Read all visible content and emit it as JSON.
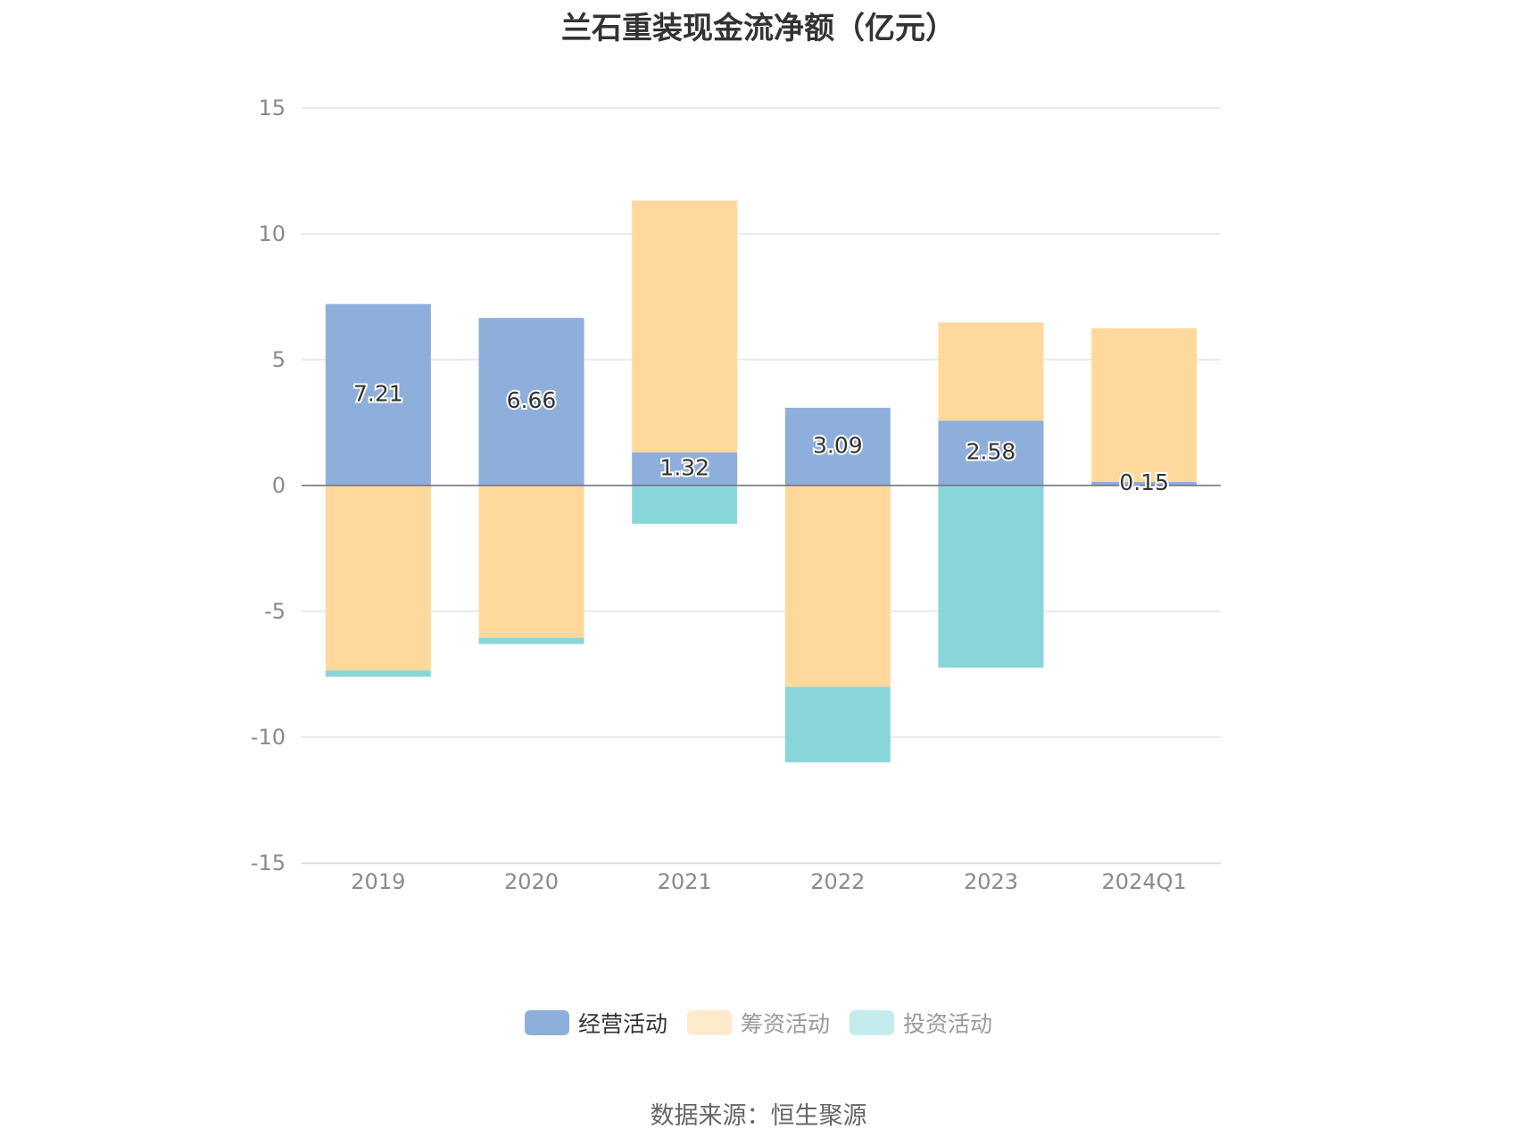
{
  "title": "兰石重装现金流净额（亿元）",
  "source": "数据来源：恒生聚源",
  "legend": [
    {
      "label": "经营活动",
      "color": "#8eaedb",
      "active": true
    },
    {
      "label": "筹资活动",
      "color": "#ffeacc",
      "active": false
    },
    {
      "label": "投资活动",
      "color": "#c4ecec",
      "active": false
    }
  ],
  "chart_data": {
    "type": "bar",
    "stacked": true,
    "categories": [
      "2019",
      "2020",
      "2021",
      "2022",
      "2023",
      "2024Q1"
    ],
    "ylim": [
      -15,
      15
    ],
    "yticks": [
      15,
      10,
      5,
      0,
      -5,
      -10,
      -15
    ],
    "grid": true,
    "legend_position": "bottom",
    "series": [
      {
        "name": "经营活动",
        "color": "#8eaedb",
        "values": [
          7.21,
          6.66,
          1.32,
          3.09,
          2.58,
          0.15
        ],
        "labels": [
          "7.21",
          "6.66",
          "1.32",
          "3.09",
          "2.58",
          "0.15"
        ]
      },
      {
        "name": "筹资活动",
        "color": "#ffd99b",
        "values": [
          -7.35,
          -6.05,
          10.0,
          -8.0,
          3.9,
          6.1
        ]
      },
      {
        "name": "投资活动",
        "color": "#88d6da",
        "values": [
          -0.25,
          -0.25,
          -1.52,
          -3.0,
          -7.24,
          0.0
        ]
      }
    ]
  }
}
